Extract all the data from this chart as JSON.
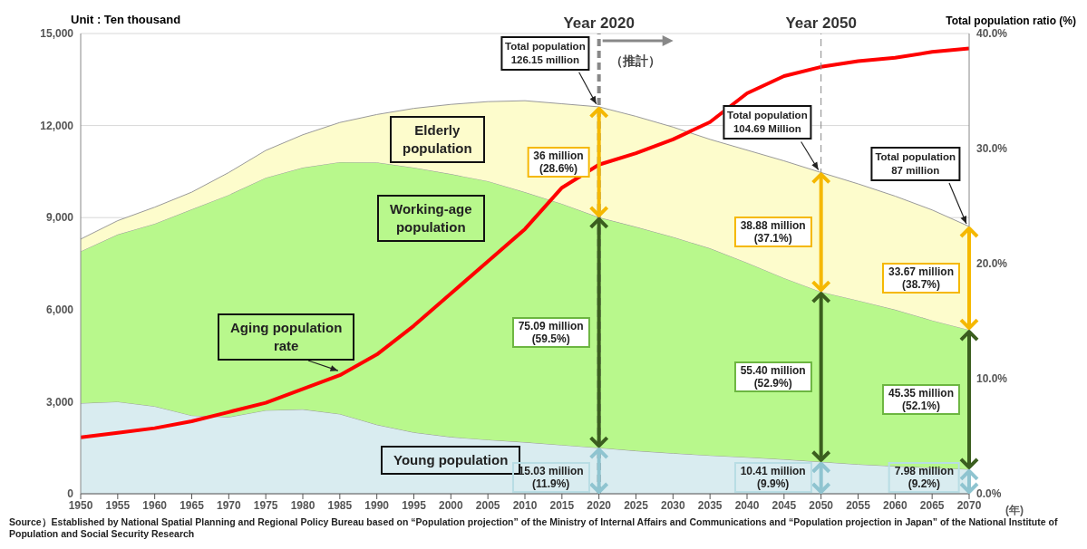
{
  "chart_data": {
    "type": "area",
    "stacked": true,
    "ylabel": "Unit : Ten thousand",
    "y2label": "Total population ratio (%)",
    "xlabel": "(年)",
    "x": [
      1950,
      1955,
      1960,
      1965,
      1970,
      1975,
      1980,
      1985,
      1990,
      1995,
      2000,
      2005,
      2010,
      2015,
      2020,
      2025,
      2030,
      2035,
      2040,
      2045,
      2050,
      2055,
      2060,
      2065,
      2070
    ],
    "series": [
      {
        "name": "Young population",
        "color": "#d9ecf0",
        "values": [
          2950,
          3000,
          2850,
          2550,
          2500,
          2720,
          2750,
          2600,
          2250,
          2000,
          1850,
          1760,
          1680,
          1590,
          1500,
          1400,
          1320,
          1250,
          1190,
          1120,
          1040,
          960,
          900,
          850,
          800
        ]
      },
      {
        "name": "Working-age\npopulation",
        "color": "#b8f88c",
        "values": [
          4950,
          5450,
          5950,
          6720,
          7240,
          7580,
          7880,
          8210,
          8550,
          8630,
          8570,
          8430,
          8150,
          7860,
          7510,
          7300,
          7050,
          6750,
          6340,
          5910,
          5540,
          5340,
          5100,
          4800,
          4540
        ]
      },
      {
        "name": "Elderly\npopulation",
        "color": "#fdfccc",
        "values": [
          400,
          450,
          540,
          560,
          730,
          890,
          1070,
          1290,
          1560,
          1930,
          2270,
          2590,
          2980,
          3260,
          3600,
          3600,
          3580,
          3550,
          3670,
          3820,
          3890,
          3800,
          3700,
          3600,
          3370
        ]
      },
      {
        "name": "Aging population\nrate",
        "type": "line",
        "axis": "y2",
        "color": "#ff0000",
        "values": [
          4.9,
          5.3,
          5.7,
          6.3,
          7.1,
          7.9,
          9.1,
          10.3,
          12.1,
          14.6,
          17.4,
          20.2,
          23.0,
          26.6,
          28.6,
          29.6,
          30.8,
          32.3,
          34.8,
          36.3,
          37.1,
          37.6,
          37.9,
          38.4,
          38.7
        ]
      }
    ],
    "xlim": [
      1950,
      2070
    ],
    "xticks": [
      1950,
      1955,
      1960,
      1965,
      1970,
      1975,
      1980,
      1985,
      1990,
      1995,
      2000,
      2005,
      2010,
      2015,
      2020,
      2025,
      2030,
      2035,
      2040,
      2045,
      2050,
      2055,
      2060,
      2065,
      2070
    ],
    "ylim": [
      0,
      15000
    ],
    "yticks": [
      0,
      {
        "value": 3000,
        "label": "3,000"
      },
      {
        "value": 6000,
        "label": "6,000"
      },
      {
        "value": 9000,
        "label": "9,000"
      },
      {
        "value": 12000,
        "label": "12,000"
      },
      {
        "value": 15000,
        "label": "15,000"
      }
    ],
    "y2lim": [
      0,
      40
    ],
    "y2ticks": [
      {
        "value": 0,
        "label": "0.0%"
      },
      {
        "value": 10,
        "label": "10.0%"
      },
      {
        "value": 20,
        "label": "20.0%"
      },
      {
        "value": 30,
        "label": "30.0%"
      },
      {
        "value": 40,
        "label": "40.0%"
      }
    ],
    "grid": "y",
    "ref_lines": [
      {
        "axis": "x",
        "value": 2020,
        "label": "Year 2020",
        "color": "#888888",
        "line_style": "dashed"
      },
      {
        "axis": "x",
        "value": 2050,
        "label": "Year 2050",
        "color": "#888888",
        "line_style": "dashed"
      }
    ],
    "annotations": [
      {
        "text": "Total population\n126.15 million",
        "x": 2020,
        "y": 12615
      },
      {
        "text": "36 million\n(28.6%)",
        "x": 2020,
        "y": 10812
      },
      {
        "text": "75.09 million\n(59.5%)",
        "x": 2020,
        "y": 5257
      },
      {
        "text": "15.03 million\n(11.9%)",
        "x": 2020,
        "y": 751
      },
      {
        "text": "Total population\n104.69 Million",
        "x": 2050,
        "y": 10469
      },
      {
        "text": "38.88 million\n(37.1%)",
        "x": 2050,
        "y": 8525
      },
      {
        "text": "55.40 million\n(52.9%)",
        "x": 2050,
        "y": 3811
      },
      {
        "text": "10.41 million\n(9.9%)",
        "x": 2050,
        "y": 520
      },
      {
        "text": "Total population\n87 million",
        "x": 2070,
        "y": 8710
      },
      {
        "text": "33.67 million\n(38.7%)",
        "x": 2070,
        "y": 7016
      },
      {
        "text": "45.35 million\n(52.1%)",
        "x": 2070,
        "y": 3065
      },
      {
        "text": "7.98 million\n(9.2%)",
        "x": 2070,
        "y": 399
      },
      "（推計）",
      "Source）Established by National Spatial Planning and Regional Policy Bureau based on “Population projection” of the Ministry of Internal Affairs and Communications and “Population projection in Japan” of the National Institute of Population and Social Security Research"
    ]
  }
}
